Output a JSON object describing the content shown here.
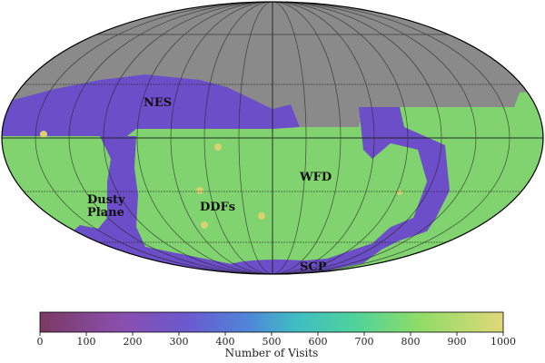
{
  "map": {
    "projection": "mollweide",
    "regions": [
      {
        "id": "nes",
        "label": "NES"
      },
      {
        "id": "wfd",
        "label": "WFD"
      },
      {
        "id": "ddfs",
        "label": "DDFs"
      },
      {
        "id": "dusty",
        "label_lines": [
          "Dusty",
          "Plane"
        ]
      },
      {
        "id": "scp",
        "label": "SCP"
      }
    ],
    "colors": {
      "no_coverage": "#8a8a8a",
      "wfd_fill": "#7fd36b",
      "low_visits_fill": "#6f50c8",
      "ddf_spot": "#d9d070",
      "ocean_edge": "#000000"
    }
  },
  "colorbar": {
    "label": "Number of Visits",
    "min": 0,
    "max": 1000,
    "ticks": [
      "0",
      "100",
      "200",
      "300",
      "400",
      "500",
      "600",
      "700",
      "800",
      "900",
      "1000"
    ],
    "colormap": "viridis-like"
  }
}
